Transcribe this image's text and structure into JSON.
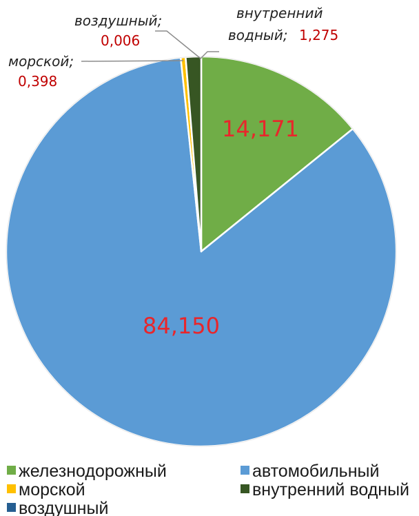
{
  "chart_data": {
    "type": "pie",
    "title": "",
    "categories": [
      "железнодорожный",
      "автомобильный",
      "морской",
      "внутренний водный",
      "воздушный"
    ],
    "values": [
      14.171,
      84.15,
      0.398,
      1.275,
      0.006
    ],
    "value_labels": [
      "14,171",
      "84,150",
      "0,398",
      "1,275",
      "0,006"
    ],
    "slice_order": [
      "железнодорожный",
      "автомобильный",
      "морской",
      "воздушный",
      "внутренний водный"
    ],
    "start_angle_deg": 0,
    "direction": "clockwise",
    "colors": {
      "железнодорожный": "#70ad47",
      "автомобильный": "#5b9bd5",
      "морской": "#ffc000",
      "внутренний водный": "#375623",
      "воздушный": "#255e91"
    },
    "label_colors": {
      "inside": "#e8262b",
      "callout": "#c00000"
    },
    "callouts": [
      {
        "category": "воздушный",
        "name": "воздушный;",
        "value": "0,006"
      },
      {
        "category": "внутренний водный",
        "name_line1": "внутренний",
        "name_line2": "водный;",
        "value": "1,275"
      },
      {
        "category": "морской",
        "name": "морской;",
        "value": "0,398"
      }
    ],
    "legend": {
      "position": "bottom",
      "columns": 2,
      "entries": [
        "железнодорожный",
        "автомобильный",
        "морской",
        "внутренний водный",
        "воздушный"
      ]
    }
  }
}
